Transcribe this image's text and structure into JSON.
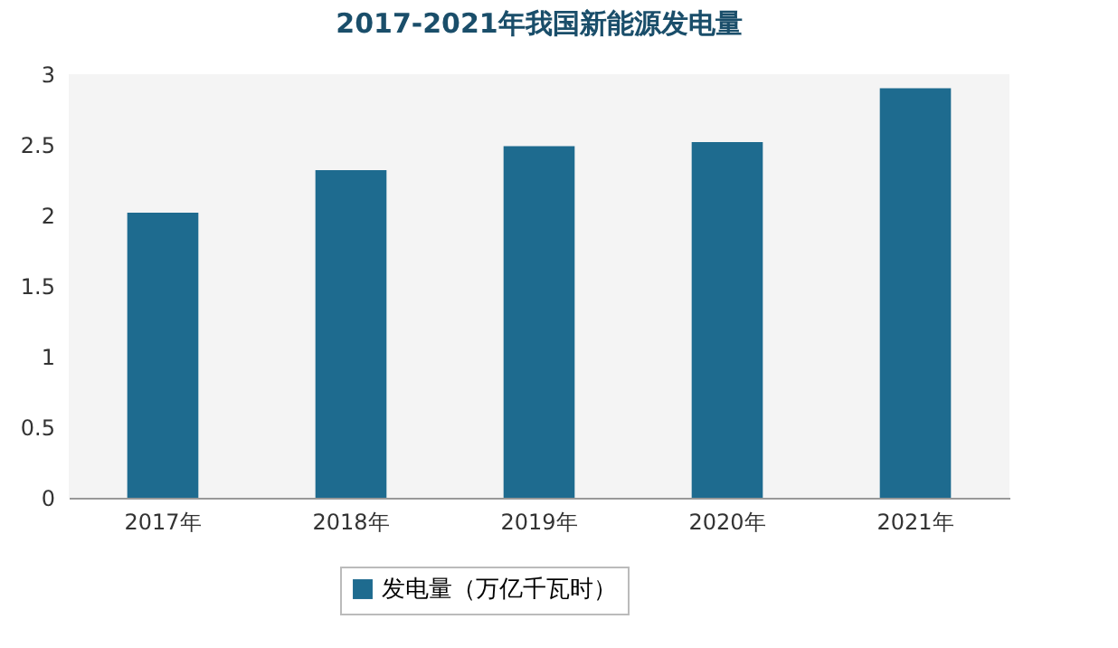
{
  "chart_data": {
    "type": "bar",
    "title": "2017-2021年我国新能源发电量",
    "categories": [
      "2017年",
      "2018年",
      "2019年",
      "2020年",
      "2021年"
    ],
    "series": [
      {
        "name": "发电量（万亿千瓦时）",
        "color": "#1e6b8f",
        "values": [
          2.02,
          2.32,
          2.49,
          2.52,
          2.9
        ]
      }
    ],
    "ylim": [
      0,
      3
    ],
    "yticks": [
      0,
      0.5,
      1,
      1.5,
      2,
      2.5,
      3
    ],
    "grid": false,
    "legend": "bottom"
  }
}
